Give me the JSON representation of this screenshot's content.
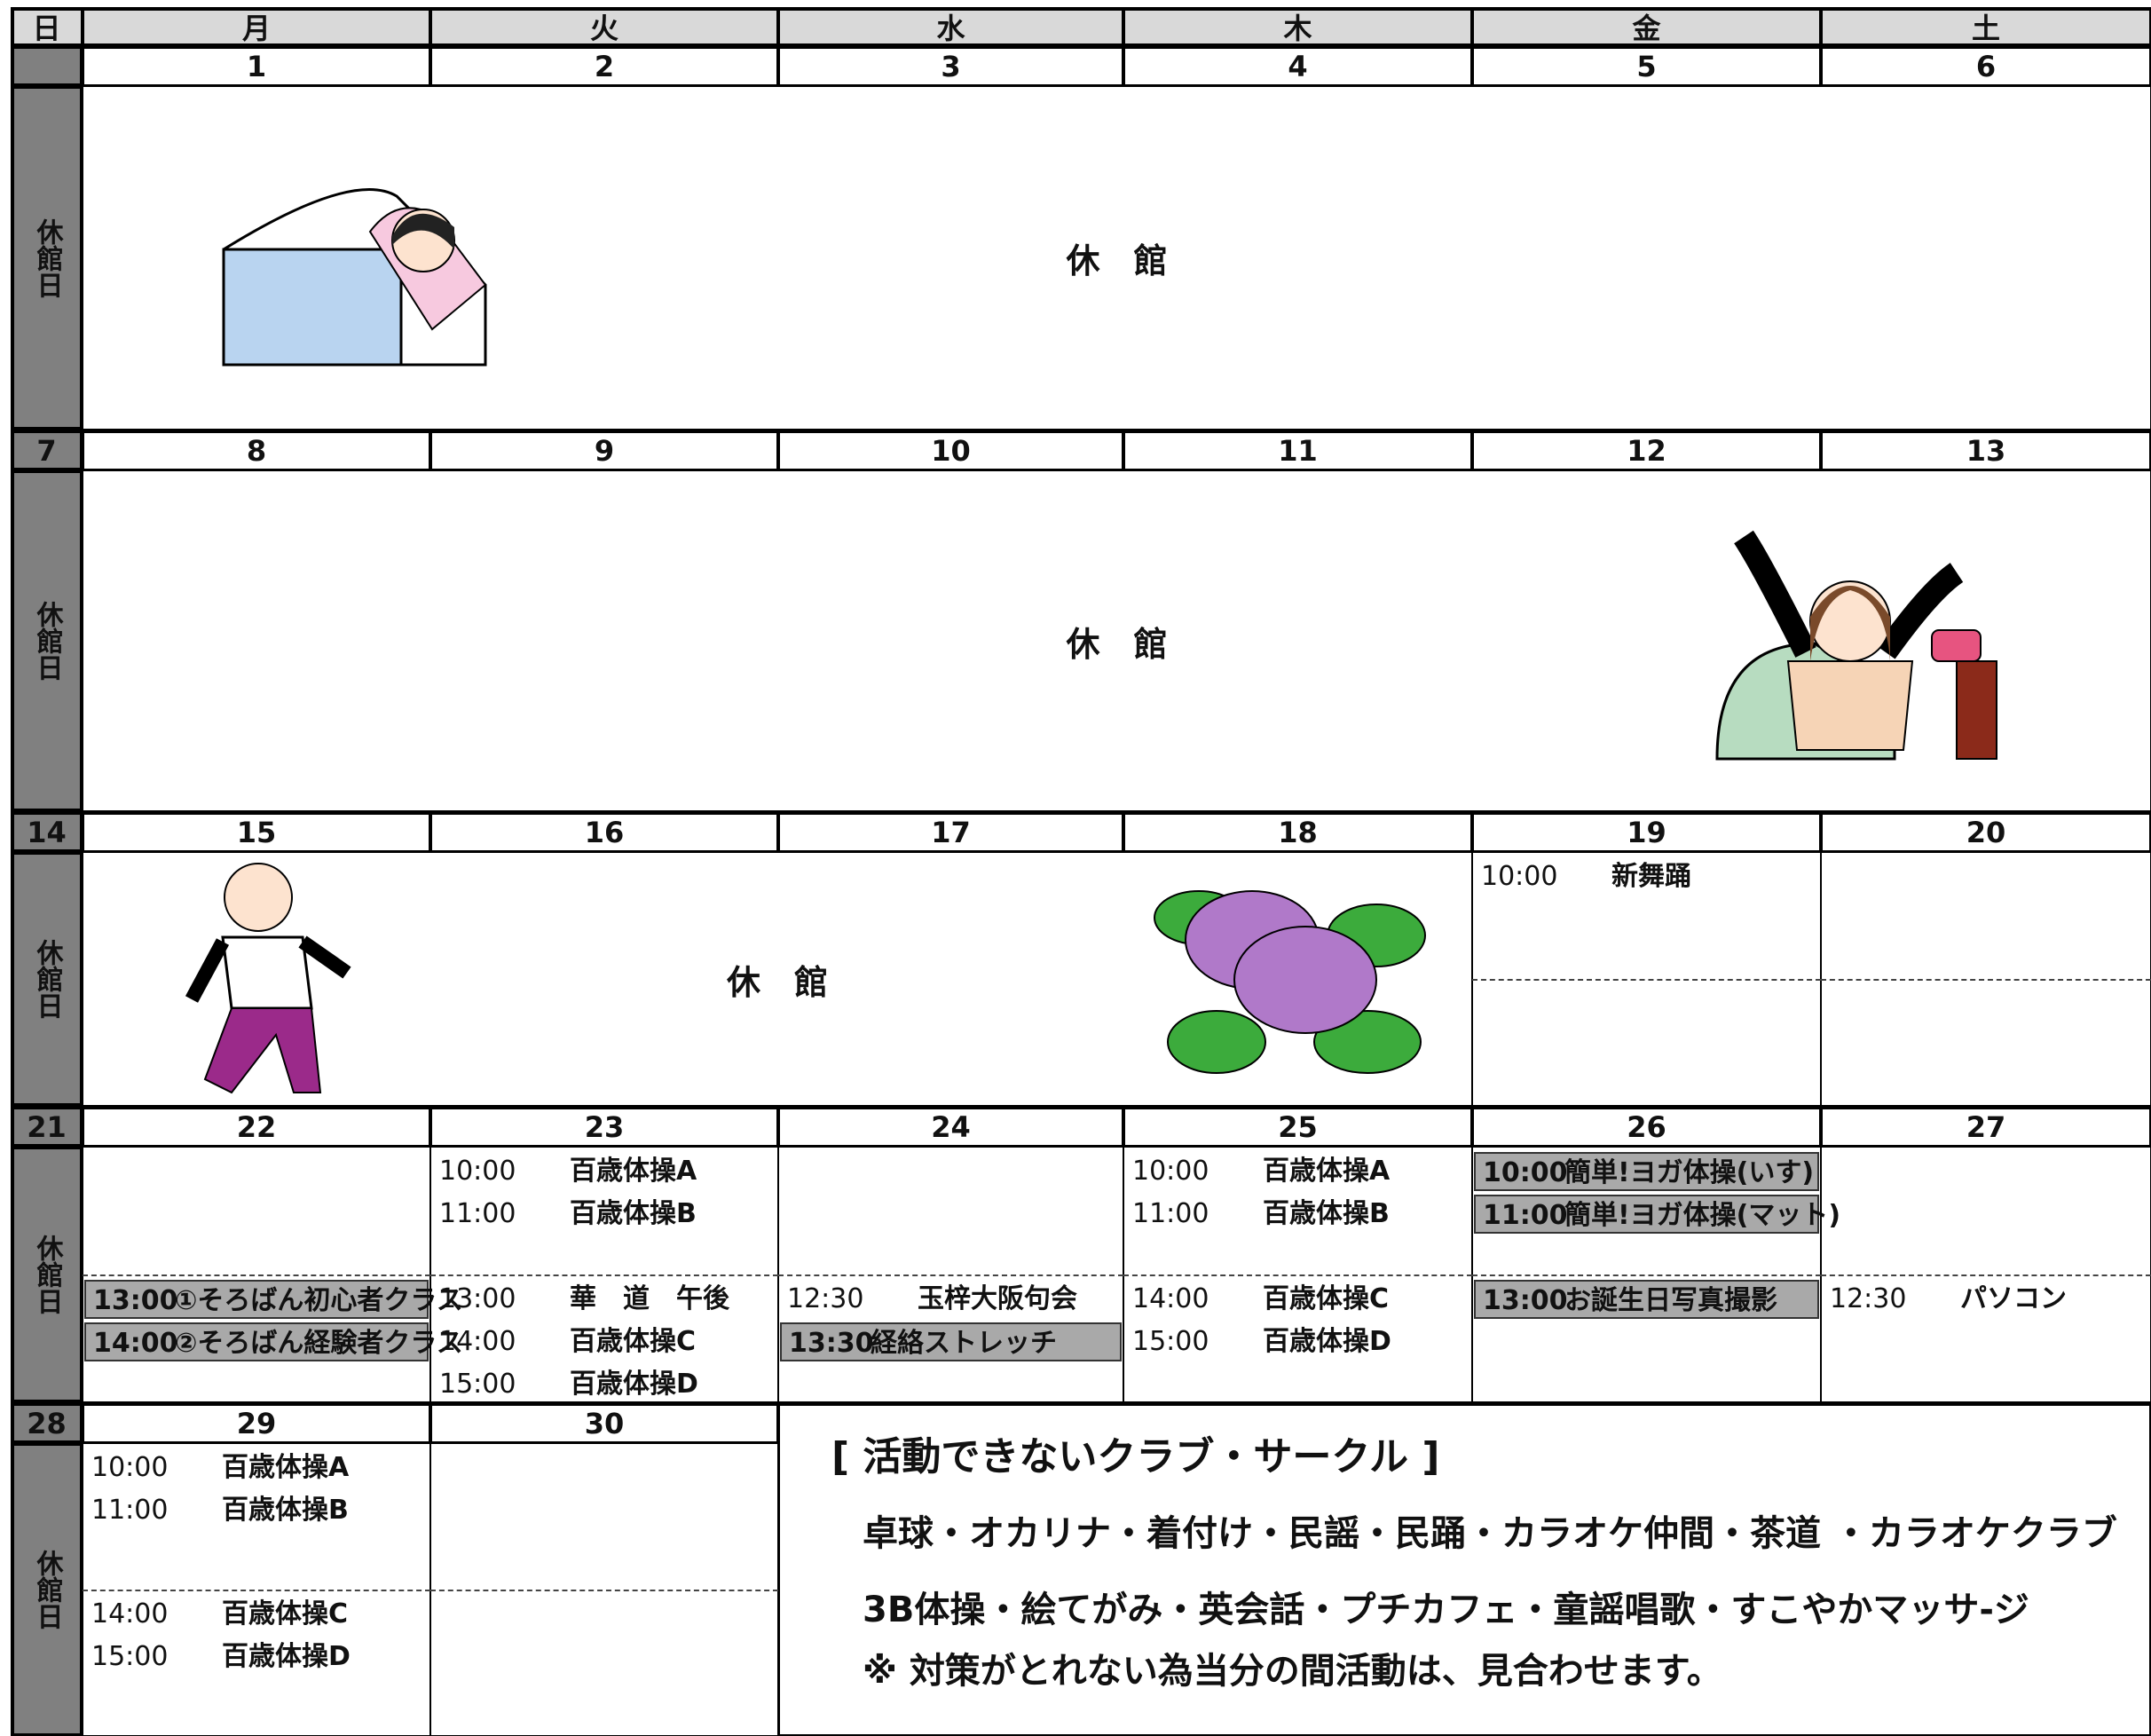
{
  "header": {
    "days": [
      "日",
      "月",
      "火",
      "水",
      "木",
      "金",
      "土"
    ]
  },
  "sunday_label": "休館日",
  "closed_label": "休　館",
  "weeks": [
    {
      "cells": [
        {
          "date": "1"
        },
        {
          "date": "2"
        },
        {
          "date": "3"
        },
        {
          "date": "4"
        },
        {
          "date": "5"
        },
        {
          "date": "6"
        }
      ]
    },
    {
      "sunday": "7",
      "cells": [
        {
          "date": "8"
        },
        {
          "date": "9"
        },
        {
          "date": "10"
        },
        {
          "date": "11"
        },
        {
          "date": "12"
        },
        {
          "date": "13"
        }
      ]
    },
    {
      "sunday": "14",
      "cells": [
        {
          "date": "15"
        },
        {
          "date": "16"
        },
        {
          "date": "17"
        },
        {
          "date": "18"
        },
        {
          "date": "19",
          "am": [
            {
              "time": "10:00",
              "name": "新舞踊"
            }
          ],
          "pm": []
        },
        {
          "date": "20",
          "am": [],
          "pm": []
        }
      ]
    },
    {
      "sunday": "21",
      "cells": [
        {
          "date": "22",
          "am": [],
          "pm": [
            {
              "time": "13:00",
              "name": "①そろばん初心者クラス",
              "highlight": true
            },
            {
              "time": "14:00",
              "name": "②そろばん経験者クラス",
              "highlight": true
            }
          ]
        },
        {
          "date": "23",
          "am": [
            {
              "time": "10:00",
              "name": "百歳体操A"
            },
            {
              "time": "11:00",
              "name": "百歳体操B"
            }
          ],
          "pm": [
            {
              "time": "13:00",
              "name": "華　道　午後"
            },
            {
              "time": "14:00",
              "name": "百歳体操C"
            },
            {
              "time": "15:00",
              "name": "百歳体操D"
            }
          ]
        },
        {
          "date": "24",
          "am": [],
          "pm": [
            {
              "time": "12:30",
              "name": "玉梓大阪句会"
            },
            {
              "time": "13:30",
              "name": "経絡ストレッチ",
              "highlight": true
            }
          ]
        },
        {
          "date": "25",
          "am": [
            {
              "time": "10:00",
              "name": "百歳体操A"
            },
            {
              "time": "11:00",
              "name": "百歳体操B"
            }
          ],
          "pm": [
            {
              "time": "14:00",
              "name": "百歳体操C"
            },
            {
              "time": "15:00",
              "name": "百歳体操D"
            }
          ]
        },
        {
          "date": "26",
          "am": [
            {
              "time": "10:00",
              "name": "簡単!ヨガ体操(いす)",
              "highlight": true
            },
            {
              "time": "11:00",
              "name": "簡単!ヨガ体操(マット)",
              "highlight": true
            }
          ],
          "pm": [
            {
              "time": "13:00",
              "name": "お誕生日写真撮影",
              "highlight": true
            }
          ]
        },
        {
          "date": "27",
          "am": [],
          "pm": [
            {
              "time": "12:30",
              "name": "パソコン"
            }
          ]
        }
      ]
    },
    {
      "sunday": "28",
      "cells": [
        {
          "date": "29",
          "am": [
            {
              "time": "10:00",
              "name": "百歳体操A"
            },
            {
              "time": "11:00",
              "name": "百歳体操B"
            }
          ],
          "pm": [
            {
              "time": "14:00",
              "name": "百歳体操C"
            },
            {
              "time": "15:00",
              "name": "百歳体操D"
            }
          ]
        },
        {
          "date": "30",
          "am": [],
          "pm": []
        }
      ]
    }
  ],
  "notice": {
    "title": "[ 活動できないクラブ・サークル ]",
    "lines": [
      "卓球・オカリナ・着付け・民謡・民踊・カラオケ仲間・茶道 ・カラオケクラブ",
      "3B体操・絵てがみ・英会話・プチカフェ・童謡唱歌・すこやかマッサ-ジ"
    ],
    "note": "※ 対策がとれない為当分の間活動は、見合わせます。"
  }
}
